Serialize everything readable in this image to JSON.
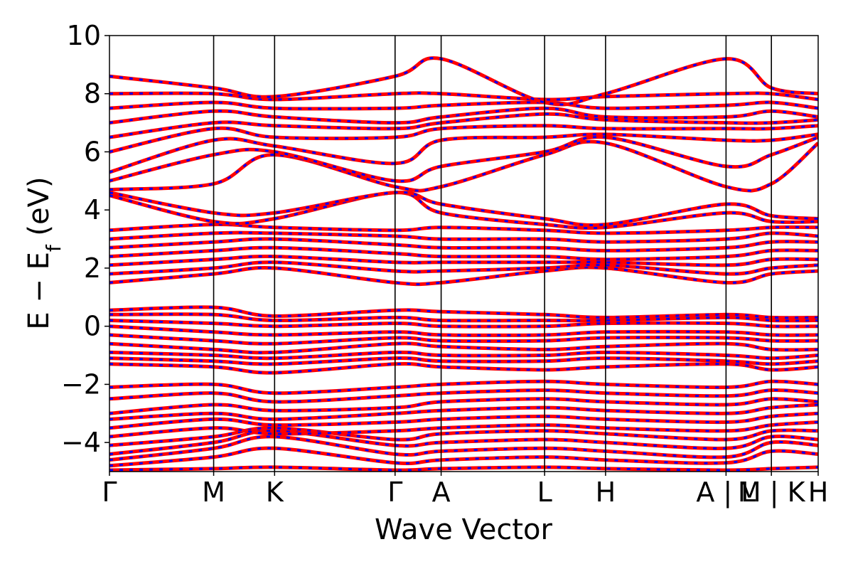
{
  "chart_data": {
    "type": "line",
    "title": "",
    "xlabel": "Wave Vector",
    "ylabel": "E − E_f (eV)",
    "ylabel_parts": {
      "main": "E − E",
      "sub": "f",
      "unit": " (eV)"
    },
    "ylim": [
      -5,
      10
    ],
    "yticks": [
      {
        "value": 10,
        "label": "10"
      },
      {
        "value": 8,
        "label": "8"
      },
      {
        "value": 6,
        "label": "6"
      },
      {
        "value": 4,
        "label": "4"
      },
      {
        "value": 2,
        "label": "2"
      },
      {
        "value": 0,
        "label": "0"
      },
      {
        "value": -2,
        "label": "−2"
      },
      {
        "value": -4,
        "label": "−4"
      }
    ],
    "kpath": [
      {
        "label": "Γ",
        "position": 0.0
      },
      {
        "label": "M",
        "position": 0.147
      },
      {
        "label": "K",
        "position": 0.233
      },
      {
        "label": "Γ",
        "position": 0.403
      },
      {
        "label": "A",
        "position": 0.468
      },
      {
        "label": "L",
        "position": 0.614
      },
      {
        "label": "H",
        "position": 0.7
      },
      {
        "label": "A | L",
        "position": 0.87
      },
      {
        "label": "M | K",
        "position": 0.934
      },
      {
        "label": "H",
        "position": 1.0
      }
    ],
    "series": [
      {
        "color": "#ff0000",
        "style": "solid"
      },
      {
        "color": "#0000ff",
        "style": "dashed"
      }
    ],
    "bands": [
      {
        "name": "",
        "x": [
          0,
          0.147,
          0.233,
          0.403,
          0.468,
          0.614,
          0.7,
          0.87,
          0.934,
          1.0
        ],
        "y": [
          -4.95,
          -4.9,
          -4.85,
          -4.95,
          -4.9,
          -4.85,
          -4.9,
          -4.95,
          -4.9,
          -4.85
        ]
      },
      {
        "name": "",
        "x": [
          0,
          0.147,
          0.233,
          0.403,
          0.468,
          0.614,
          0.7,
          0.87,
          0.934,
          1.0
        ],
        "y": [
          -4.8,
          -4.5,
          -4.2,
          -4.7,
          -4.6,
          -4.5,
          -4.6,
          -4.7,
          -4.3,
          -4.4
        ]
      },
      {
        "name": "",
        "x": [
          0,
          0.147,
          0.233,
          0.403,
          0.468,
          0.614,
          0.7,
          0.87,
          0.934,
          1.0
        ],
        "y": [
          -4.6,
          -4.2,
          -3.8,
          -4.4,
          -4.3,
          -4.2,
          -4.3,
          -4.5,
          -4.0,
          -4.1
        ]
      },
      {
        "name": "",
        "x": [
          0,
          0.147,
          0.233,
          0.403,
          0.468,
          0.614,
          0.7,
          0.87,
          0.934,
          1.0
        ],
        "y": [
          -4.4,
          -4.0,
          -3.6,
          -4.1,
          -4.0,
          -3.9,
          -4.0,
          -4.2,
          -3.8,
          -3.9
        ]
      },
      {
        "name": "",
        "x": [
          0,
          0.147,
          0.233,
          0.403,
          0.468,
          0.614,
          0.7,
          0.87,
          0.934,
          1.0
        ],
        "y": [
          -4.1,
          -3.8,
          -3.5,
          -3.9,
          -3.7,
          -3.6,
          -3.7,
          -3.9,
          -3.6,
          -3.6
        ]
      },
      {
        "name": "",
        "x": [
          0,
          0.147,
          0.233,
          0.403,
          0.468,
          0.614,
          0.7,
          0.87,
          0.934,
          1.0
        ],
        "y": [
          -3.8,
          -3.5,
          -3.7,
          -3.6,
          -3.5,
          -3.4,
          -3.5,
          -3.6,
          -3.4,
          -3.3
        ]
      },
      {
        "name": "",
        "x": [
          0,
          0.147,
          0.233,
          0.403,
          0.468,
          0.614,
          0.7,
          0.87,
          0.934,
          1.0
        ],
        "y": [
          -3.5,
          -3.2,
          -3.4,
          -3.3,
          -3.2,
          -3.1,
          -3.2,
          -3.3,
          -3.1,
          -3.0
        ]
      },
      {
        "name": "",
        "x": [
          0,
          0.147,
          0.233,
          0.403,
          0.468,
          0.614,
          0.7,
          0.87,
          0.934,
          1.0
        ],
        "y": [
          -3.2,
          -3.0,
          -3.2,
          -3.0,
          -2.9,
          -2.8,
          -2.9,
          -3.0,
          -2.8,
          -2.7
        ]
      },
      {
        "name": "",
        "x": [
          0,
          0.147,
          0.233,
          0.403,
          0.468,
          0.614,
          0.7,
          0.87,
          0.934,
          1.0
        ],
        "y": [
          -3.0,
          -2.7,
          -2.9,
          -2.8,
          -2.6,
          -2.5,
          -2.6,
          -2.7,
          -2.5,
          -2.6
        ]
      },
      {
        "name": "",
        "x": [
          0,
          0.147,
          0.233,
          0.403,
          0.468,
          0.614,
          0.7,
          0.87,
          0.934,
          1.0
        ],
        "y": [
          -2.5,
          -2.3,
          -2.6,
          -2.4,
          -2.3,
          -2.2,
          -2.3,
          -2.4,
          -2.2,
          -2.3
        ]
      },
      {
        "name": "",
        "x": [
          0,
          0.147,
          0.233,
          0.403,
          0.468,
          0.614,
          0.7,
          0.87,
          0.934,
          1.0
        ],
        "y": [
          -2.1,
          -2.0,
          -2.3,
          -2.1,
          -2.0,
          -1.9,
          -2.0,
          -2.1,
          -1.9,
          -2.0
        ]
      },
      {
        "name": "",
        "x": [
          0,
          0.147,
          0.233,
          0.403,
          0.468,
          0.614,
          0.7,
          0.87,
          0.934,
          1.0
        ],
        "y": [
          -1.3,
          -1.4,
          -1.6,
          -1.3,
          -1.4,
          -1.5,
          -1.4,
          -1.3,
          -1.5,
          -1.4
        ]
      },
      {
        "name": "",
        "x": [
          0,
          0.147,
          0.233,
          0.403,
          0.468,
          0.614,
          0.7,
          0.87,
          0.934,
          1.0
        ],
        "y": [
          -1.1,
          -1.2,
          -1.3,
          -1.1,
          -1.2,
          -1.2,
          -1.1,
          -1.2,
          -1.3,
          -1.2
        ]
      },
      {
        "name": "",
        "x": [
          0,
          0.147,
          0.233,
          0.403,
          0.468,
          0.614,
          0.7,
          0.87,
          0.934,
          1.0
        ],
        "y": [
          -0.9,
          -1.0,
          -1.1,
          -0.9,
          -1.0,
          -1.0,
          -0.9,
          -1.0,
          -1.1,
          -1.0
        ]
      },
      {
        "name": "",
        "x": [
          0,
          0.147,
          0.233,
          0.403,
          0.468,
          0.614,
          0.7,
          0.87,
          0.934,
          1.0
        ],
        "y": [
          -0.6,
          -0.8,
          -0.9,
          -0.6,
          -0.7,
          -0.8,
          -0.7,
          -0.6,
          -0.8,
          -0.8
        ]
      },
      {
        "name": "",
        "x": [
          0,
          0.147,
          0.233,
          0.403,
          0.468,
          0.614,
          0.7,
          0.87,
          0.934,
          1.0
        ],
        "y": [
          -0.3,
          -0.5,
          -0.6,
          -0.4,
          -0.5,
          -0.5,
          -0.4,
          -0.4,
          -0.5,
          -0.5
        ]
      },
      {
        "name": "",
        "x": [
          0,
          0.147,
          0.233,
          0.403,
          0.468,
          0.614,
          0.7,
          0.87,
          0.934,
          1.0
        ],
        "y": [
          0.0,
          -0.2,
          -0.3,
          -0.2,
          -0.3,
          -0.3,
          -0.2,
          -0.2,
          -0.3,
          -0.3
        ]
      },
      {
        "name": "",
        "x": [
          0,
          0.147,
          0.233,
          0.403,
          0.468,
          0.614,
          0.7,
          0.87,
          0.934,
          1.0
        ],
        "y": [
          0.2,
          0.1,
          0.0,
          0.1,
          0.0,
          0.0,
          0.1,
          0.1,
          0.0,
          0.0
        ]
      },
      {
        "name": "",
        "x": [
          0,
          0.147,
          0.233,
          0.403,
          0.468,
          0.614,
          0.7,
          0.87,
          0.934,
          1.0
        ],
        "y": [
          0.4,
          0.4,
          0.2,
          0.3,
          0.2,
          0.2,
          0.2,
          0.3,
          0.2,
          0.2
        ]
      },
      {
        "name": "",
        "x": [
          0,
          0.147,
          0.233,
          0.403,
          0.468,
          0.614,
          0.7,
          0.87,
          0.934,
          1.0
        ],
        "y": [
          0.55,
          0.65,
          0.35,
          0.55,
          0.5,
          0.4,
          0.3,
          0.4,
          0.3,
          0.3
        ]
      },
      {
        "name": "",
        "x": [
          0,
          0.147,
          0.233,
          0.403,
          0.468,
          0.614,
          0.7,
          0.87,
          0.934,
          1.0
        ],
        "y": [
          1.5,
          1.8,
          2.0,
          1.5,
          1.5,
          1.9,
          2.0,
          1.5,
          1.8,
          1.9
        ]
      },
      {
        "name": "",
        "x": [
          0,
          0.147,
          0.233,
          0.403,
          0.468,
          0.614,
          0.7,
          0.87,
          0.934,
          1.0
        ],
        "y": [
          1.8,
          2.0,
          2.2,
          1.9,
          1.9,
          2.0,
          2.1,
          1.8,
          2.0,
          2.1
        ]
      },
      {
        "name": "",
        "x": [
          0,
          0.147,
          0.233,
          0.403,
          0.468,
          0.614,
          0.7,
          0.87,
          0.934,
          1.0
        ],
        "y": [
          2.1,
          2.3,
          2.4,
          2.2,
          2.2,
          2.2,
          2.2,
          2.1,
          2.3,
          2.3
        ]
      },
      {
        "name": "",
        "x": [
          0,
          0.147,
          0.233,
          0.403,
          0.468,
          0.614,
          0.7,
          0.87,
          0.934,
          1.0
        ],
        "y": [
          2.4,
          2.6,
          2.7,
          2.5,
          2.4,
          2.4,
          2.3,
          2.4,
          2.6,
          2.6
        ]
      },
      {
        "name": "",
        "x": [
          0,
          0.147,
          0.233,
          0.403,
          0.468,
          0.614,
          0.7,
          0.87,
          0.934,
          1.0
        ],
        "y": [
          2.7,
          2.9,
          3.0,
          2.8,
          2.7,
          2.7,
          2.6,
          2.7,
          2.9,
          2.9
        ]
      },
      {
        "name": "",
        "x": [
          0,
          0.147,
          0.233,
          0.403,
          0.468,
          0.614,
          0.7,
          0.87,
          0.934,
          1.0
        ],
        "y": [
          3.0,
          3.2,
          3.2,
          3.1,
          3.0,
          3.0,
          2.9,
          3.0,
          3.2,
          3.1
        ]
      },
      {
        "name": "",
        "x": [
          0,
          0.147,
          0.233,
          0.403,
          0.468,
          0.614,
          0.7,
          0.87,
          0.934,
          1.0
        ],
        "y": [
          3.3,
          3.5,
          3.4,
          3.3,
          3.4,
          3.3,
          3.2,
          3.3,
          3.4,
          3.4
        ]
      },
      {
        "name": "",
        "x": [
          0,
          0.147,
          0.233,
          0.403,
          0.468,
          0.614,
          0.7,
          0.87,
          0.934,
          1.0
        ],
        "y": [
          4.5,
          3.6,
          3.7,
          4.6,
          3.9,
          3.5,
          3.4,
          3.9,
          3.6,
          3.6
        ]
      },
      {
        "name": "",
        "x": [
          0,
          0.147,
          0.233,
          0.403,
          0.468,
          0.614,
          0.7,
          0.87,
          0.934,
          1.0
        ],
        "y": [
          4.6,
          3.9,
          3.9,
          4.6,
          4.2,
          3.7,
          3.5,
          4.2,
          3.8,
          3.7
        ]
      },
      {
        "name": "",
        "x": [
          0,
          0.147,
          0.233,
          0.403,
          0.468,
          0.614,
          0.7,
          0.87,
          0.934,
          1.0
        ],
        "y": [
          4.7,
          4.9,
          5.9,
          4.8,
          4.8,
          5.9,
          6.3,
          4.8,
          4.9,
          6.3
        ]
      },
      {
        "name": "",
        "x": [
          0,
          0.147,
          0.233,
          0.403,
          0.468,
          0.614,
          0.7,
          0.87,
          0.934,
          1.0
        ],
        "y": [
          5.0,
          5.9,
          6.0,
          5.0,
          5.5,
          6.0,
          6.5,
          5.5,
          5.9,
          6.5
        ]
      },
      {
        "name": "",
        "x": [
          0,
          0.147,
          0.233,
          0.403,
          0.468,
          0.614,
          0.7,
          0.87,
          0.934,
          1.0
        ],
        "y": [
          5.3,
          6.4,
          6.2,
          5.6,
          6.4,
          6.5,
          6.6,
          6.4,
          6.4,
          6.6
        ]
      },
      {
        "name": "",
        "x": [
          0,
          0.147,
          0.233,
          0.403,
          0.468,
          0.614,
          0.7,
          0.87,
          0.934,
          1.0
        ],
        "y": [
          6.0,
          6.8,
          6.5,
          6.5,
          6.8,
          6.9,
          6.8,
          6.8,
          6.8,
          6.9
        ]
      },
      {
        "name": "",
        "x": [
          0,
          0.147,
          0.233,
          0.403,
          0.468,
          0.614,
          0.7,
          0.87,
          0.934,
          1.0
        ],
        "y": [
          6.5,
          7.0,
          6.9,
          6.8,
          7.0,
          7.3,
          7.1,
          7.0,
          7.0,
          7.1
        ]
      },
      {
        "name": "",
        "x": [
          0,
          0.147,
          0.233,
          0.403,
          0.468,
          0.614,
          0.7,
          0.87,
          0.934,
          1.0
        ],
        "y": [
          7.0,
          7.4,
          7.2,
          7.0,
          7.2,
          7.5,
          7.2,
          7.2,
          7.4,
          7.2
        ]
      },
      {
        "name": "",
        "x": [
          0,
          0.147,
          0.233,
          0.403,
          0.468,
          0.614,
          0.7,
          0.87,
          0.934,
          1.0
        ],
        "y": [
          7.5,
          7.7,
          7.5,
          7.5,
          7.6,
          7.7,
          7.5,
          7.6,
          7.7,
          7.5
        ]
      },
      {
        "name": "",
        "x": [
          0,
          0.147,
          0.233,
          0.403,
          0.468,
          0.614,
          0.7,
          0.87,
          0.934,
          1.0
        ],
        "y": [
          8.0,
          8.0,
          7.8,
          8.0,
          8.0,
          7.8,
          7.9,
          8.0,
          8.0,
          7.8
        ]
      },
      {
        "name": "",
        "x": [
          0,
          0.147,
          0.233,
          0.403,
          0.468,
          0.614,
          0.7,
          0.87,
          0.934,
          1.0
        ],
        "y": [
          8.6,
          8.2,
          7.9,
          8.6,
          9.2,
          7.7,
          8.0,
          9.2,
          8.2,
          8.0
        ]
      }
    ]
  }
}
